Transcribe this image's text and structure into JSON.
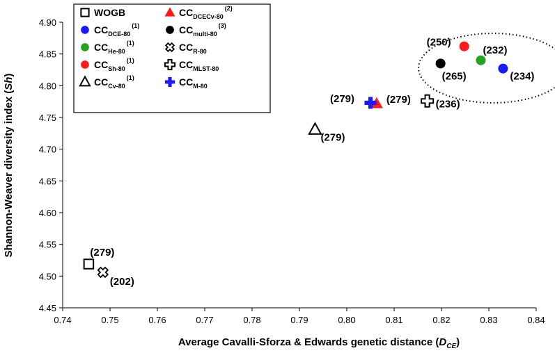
{
  "chart_data": {
    "type": "scatter",
    "title": "",
    "xlabel_main": "Average Cavalli-Sforza & Edwards genetic distance (",
    "xlabel_var": "D",
    "xlabel_sub": "CE",
    "xlabel_end": ")",
    "ylabel_main": "Shannon-Weaver diversity index  (",
    "ylabel_var": "Sh",
    "ylabel_end": ")",
    "xlim": [
      0.74,
      0.84
    ],
    "ylim": [
      4.45,
      4.9
    ],
    "xticks": [
      "0.74",
      "0.75",
      "0.76",
      "0.77",
      "0.78",
      "0.79",
      "0.80",
      "0.81",
      "0.82",
      "0.83",
      "0.84"
    ],
    "yticks": [
      "4.45",
      "4.50",
      "4.55",
      "4.60",
      "4.65",
      "4.70",
      "4.75",
      "4.80",
      "4.85",
      "4.90"
    ],
    "series": [
      {
        "name": "WOGB",
        "marker": "square-open",
        "color": "#000000",
        "x": 0.7455,
        "y": 4.519,
        "label": "(279)"
      },
      {
        "name": "CC",
        "sub": "DCE-80",
        "sup": "(1)",
        "marker": "circle",
        "color": "#1a1aff",
        "x": 0.833,
        "y": 4.827,
        "label": "(234)"
      },
      {
        "name": "CC",
        "sub": "He-80",
        "sup": "(1)",
        "marker": "circle",
        "color": "#22a322",
        "x": 0.8283,
        "y": 4.84,
        "label": "(232)"
      },
      {
        "name": "CC",
        "sub": "Sh-80",
        "sup": "(1)",
        "marker": "circle",
        "color": "#ff1a1a",
        "x": 0.8248,
        "y": 4.862,
        "label": "(250)"
      },
      {
        "name": "CC",
        "sub": "Cv-80",
        "sup": "(1)",
        "marker": "triangle-open",
        "color": "#000000",
        "x": 0.7933,
        "y": 4.731,
        "label": "(279)"
      },
      {
        "name": "CC",
        "sub": "DCECv-80",
        "sup": "(2)",
        "marker": "triangle",
        "color": "#ff1a1a",
        "x": 0.8063,
        "y": 4.772,
        "label": "(279)"
      },
      {
        "name": "CC",
        "sub": "multi-80",
        "sup": "(3)",
        "marker": "circle",
        "color": "#000000",
        "x": 0.8198,
        "y": 4.835,
        "label": "(265)"
      },
      {
        "name": "CC",
        "sub": "R-80",
        "sup": "",
        "marker": "x-cross",
        "color": "#000000",
        "x": 0.7485,
        "y": 4.506,
        "label": "(202)"
      },
      {
        "name": "CC",
        "sub": "MLST-80",
        "sup": "",
        "marker": "plus-open",
        "color": "#000000",
        "x": 0.817,
        "y": 4.776,
        "label": "(236)"
      },
      {
        "name": "CC",
        "sub": "M-80",
        "sup": "",
        "marker": "plus",
        "color": "#1a1aff",
        "x": 0.805,
        "y": 4.773,
        "label": "(279)"
      }
    ],
    "annotation": "dotted ellipse enclosing the four core-collection points with 232, 234, 250 and 265 accessions",
    "grid": false,
    "legend_position": "top-left"
  }
}
